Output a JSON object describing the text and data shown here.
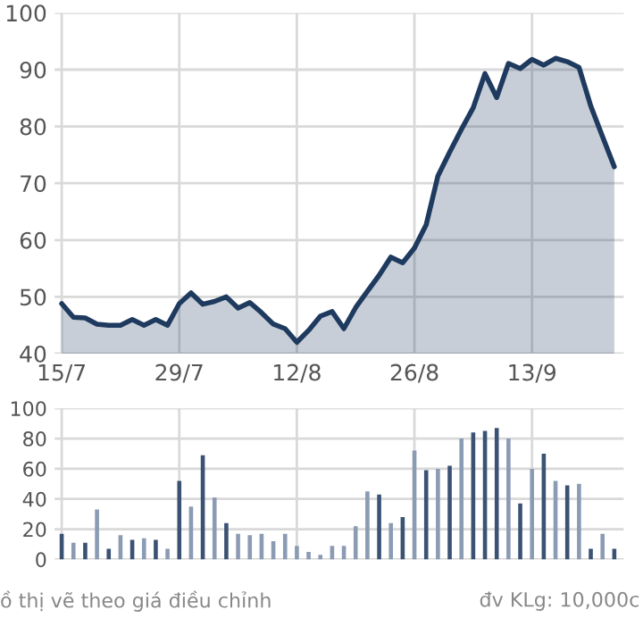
{
  "chart_data": [
    {
      "type": "area",
      "categories": [
        "15/7",
        null,
        null,
        null,
        null,
        null,
        null,
        null,
        null,
        null,
        "29/7",
        null,
        null,
        null,
        null,
        null,
        null,
        null,
        null,
        null,
        "12/8",
        null,
        null,
        null,
        null,
        null,
        null,
        null,
        null,
        null,
        "26/8",
        null,
        null,
        null,
        null,
        null,
        null,
        null,
        null,
        null,
        "13/9",
        null,
        null,
        null,
        null,
        null,
        null,
        null
      ],
      "series": [
        {
          "color": "#1f3a5f",
          "values": [
            48.8,
            46.4,
            46.3,
            45.2,
            45,
            45,
            46,
            45,
            46,
            45,
            48.8,
            50.7,
            48.7,
            49.2,
            50,
            48,
            49,
            47.2,
            45.2,
            44.4,
            42,
            44.1,
            46.6,
            47.4,
            44.4,
            48.1,
            51,
            53.8,
            57,
            56,
            58.6,
            62.7,
            71.3,
            75.5,
            79.5,
            83.3,
            89.3,
            85.1,
            91.1,
            90.2,
            91.8,
            90.8,
            92,
            91.4,
            90.4,
            83.6,
            78.2,
            72.9
          ]
        }
      ],
      "ylim": [
        40,
        100
      ],
      "yticks": [
        40,
        50,
        60,
        70,
        80,
        90,
        100
      ],
      "grid": true
    },
    {
      "type": "bar",
      "categories": [
        null,
        null,
        null,
        null,
        null,
        null,
        null,
        null,
        null,
        null,
        null,
        null,
        null,
        null,
        null,
        null,
        null,
        null,
        null,
        null,
        null,
        null,
        null,
        null,
        null,
        null,
        null,
        null,
        null,
        null,
        null,
        null,
        null,
        null,
        null,
        null,
        null,
        null,
        null,
        null,
        null,
        null,
        null,
        null,
        null,
        null,
        null,
        null
      ],
      "values": [
        17,
        11,
        11,
        33,
        7,
        16,
        13,
        14,
        13,
        7,
        52,
        35,
        69,
        41,
        24,
        17,
        16,
        17,
        12,
        17,
        9,
        5,
        3,
        9,
        9,
        22,
        45,
        43,
        24,
        28,
        72,
        59,
        60,
        62,
        80,
        84,
        85,
        87,
        80,
        37,
        60,
        70,
        52,
        49,
        50,
        7,
        17,
        7
      ],
      "colors": [
        "#3b5273",
        "#8a9bb3",
        "#3b5273",
        "#8a9bb3",
        "#3b5273",
        "#8a9bb3",
        "#3b5273",
        "#8a9bb3",
        "#3b5273",
        "#8a9bb3",
        "#3b5273",
        "#8a9bb3",
        "#3b5273",
        "#8a9bb3",
        "#3b5273",
        "#8a9bb3",
        "#8a9bb3",
        "#8a9bb3",
        "#8a9bb3",
        "#8a9bb3",
        "#8a9bb3",
        "#8a9bb3",
        "#8a9bb3",
        "#8a9bb3",
        "#8a9bb3",
        "#8a9bb3",
        "#8a9bb3",
        "#3b5273",
        "#8a9bb3",
        "#3b5273",
        "#8a9bb3",
        "#3b5273",
        "#8a9bb3",
        "#3b5273",
        "#8a9bb3",
        "#3b5273",
        "#3b5273",
        "#3b5273",
        "#8a9bb3",
        "#3b5273",
        "#8a9bb3",
        "#3b5273",
        "#8a9bb3",
        "#3b5273",
        "#8a9bb3",
        "#3b5273",
        "#8a9bb3",
        "#3b5273"
      ],
      "ylim": [
        0,
        100
      ],
      "yticks": [
        0,
        20,
        40,
        60,
        80,
        100
      ],
      "grid": true,
      "tick_labels": "y",
      "annotations": [
        "ồ thị vẽ theo giá điều chỉnh",
        "đv KLg: 10,000c"
      ]
    }
  ]
}
